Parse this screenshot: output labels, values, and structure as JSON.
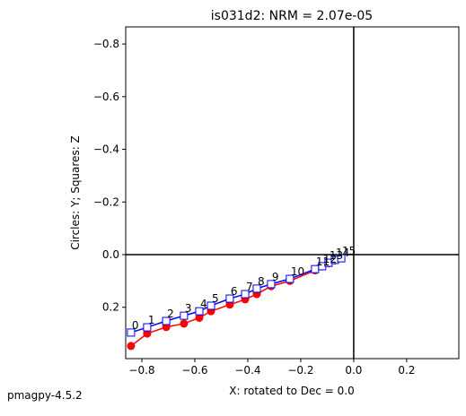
{
  "chart_data": {
    "type": "line",
    "title": "is031d2: NRM =  2.07e-05",
    "xlabel": "X: rotated to Dec =     0.0",
    "ylabel": "Circles: Y; Squares: Z",
    "footer": "pmagpy-4.5.2",
    "x": [
      -0.841,
      -0.78,
      -0.708,
      -0.641,
      -0.583,
      -0.539,
      -0.468,
      -0.41,
      -0.366,
      -0.312,
      -0.241,
      -0.146,
      -0.119,
      -0.095,
      -0.071,
      -0.047
    ],
    "point_labels": [
      0,
      1,
      2,
      3,
      4,
      5,
      6,
      7,
      8,
      9,
      10,
      11,
      12,
      13,
      14,
      15
    ],
    "series": [
      {
        "color": "#ff0000",
        "marker": "circle",
        "values": [
          0.347,
          0.3,
          0.275,
          0.262,
          0.24,
          0.215,
          0.19,
          0.17,
          0.15,
          0.12,
          0.1,
          0.06,
          0.045,
          0.033,
          0.022,
          0.014
        ]
      },
      {
        "color": "#0000ff",
        "marker": "square",
        "values": [
          0.296,
          0.276,
          0.252,
          0.232,
          0.215,
          0.194,
          0.167,
          0.15,
          0.129,
          0.112,
          0.092,
          0.055,
          0.044,
          0.031,
          0.02,
          0.014
        ]
      }
    ],
    "xlim": [
      -0.861,
      0.397
    ],
    "ylim": [
      0.395,
      -0.865
    ],
    "xticks": [
      {
        "value": -0.8,
        "label": "−0.8"
      },
      {
        "value": -0.6,
        "label": "−0.6"
      },
      {
        "value": -0.4,
        "label": "−0.4"
      },
      {
        "value": -0.2,
        "label": "−0.2"
      },
      {
        "value": 0,
        "label": "0.0"
      },
      {
        "value": 0.2,
        "label": "0.2"
      }
    ],
    "yticks": [
      {
        "value": -0.8,
        "label": "−0.8"
      },
      {
        "value": -0.6,
        "label": "−0.6"
      },
      {
        "value": -0.4,
        "label": "−0.4"
      },
      {
        "value": -0.2,
        "label": "−0.2"
      },
      {
        "value": 0,
        "label": "0.0"
      },
      {
        "value": 0.2,
        "label": "0.2"
      }
    ]
  }
}
